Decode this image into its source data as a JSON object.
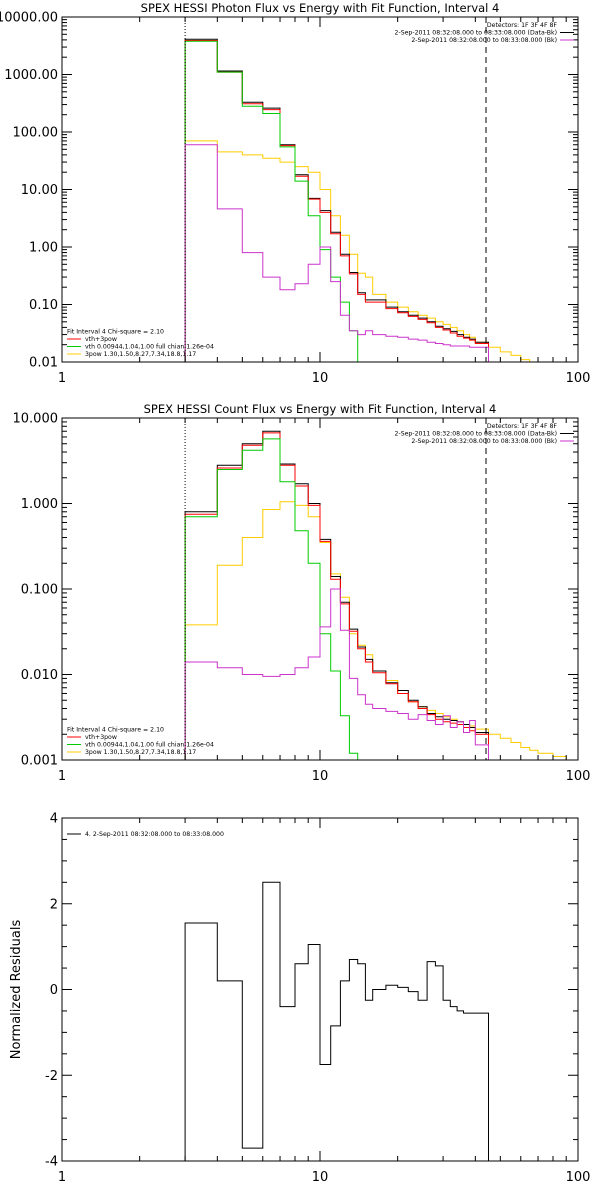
{
  "chart_data": [
    {
      "type": "line",
      "title": "SPEX HESSI Photon Flux vs Energy with Fit Function, Interval 4",
      "xlabel": "",
      "ylabel": "",
      "xscale": "log",
      "yscale": "log",
      "xlim": [
        1,
        100
      ],
      "ylim": [
        0.01,
        10000
      ],
      "xticks": [
        1,
        10,
        100
      ],
      "xticklabels": [
        "1",
        "10",
        "100"
      ],
      "yticks": [
        0.01,
        0.1,
        1,
        10,
        100,
        1000,
        10000
      ],
      "yticklabels": [
        "0.01",
        "0.10",
        "1.00",
        "10.00",
        "100.00",
        "1000.00",
        "10000.00"
      ],
      "vlines": [
        {
          "x": 3,
          "style": "dotted"
        },
        {
          "x": 44,
          "style": "dashed"
        }
      ],
      "legend_top": {
        "position": "top-right",
        "lines": [
          {
            "text": "Detectors: 1F 3F 4F 8F",
            "color": ""
          },
          {
            "text": "2-Sep-2011 08:32:08.000 to 08:33:08.000 (Data-Bk)",
            "color": "#000000"
          },
          {
            "text": "2-Sep-2011 08:32:08.000 to 08:33:08.000 (Bk)",
            "color": "#cc33cc"
          }
        ]
      },
      "legend_bottom": {
        "position": "bottom-left",
        "lines": [
          {
            "text": "Fit Interval 4   Chi-square = 2.10",
            "color": ""
          },
          {
            "text": "vth+3pow",
            "color": "#ff0000"
          },
          {
            "text": "vth 0.00944,1.04,1.00  full chian 1.26e-04",
            "color": "#00cc00"
          },
          {
            "text": "3pow 1.30,1.50,8.27,7.34,18.8,1.17",
            "color": "#ffcc00"
          }
        ]
      },
      "series": [
        {
          "color": "#ffcc00",
          "edges": [
            3,
            4,
            5,
            6,
            7,
            8,
            9,
            10,
            11,
            12,
            13,
            14,
            15,
            16,
            18,
            20,
            22,
            24,
            26,
            28,
            30,
            32,
            34,
            36,
            38,
            40,
            45,
            50,
            55,
            60,
            65,
            70
          ],
          "values": [
            70,
            45,
            40,
            35,
            30,
            25,
            20,
            10,
            3.5,
            1.6,
            0.75,
            0.35,
            0.3,
            0.15,
            0.11,
            0.09,
            0.075,
            0.065,
            0.058,
            0.05,
            0.045,
            0.04,
            0.035,
            0.03,
            0.027,
            0.022,
            0.018,
            0.015,
            0.013,
            0.011,
            0.01
          ]
        },
        {
          "color": "#000000",
          "edges": [
            3,
            4,
            5,
            6,
            7,
            8,
            9,
            10,
            11,
            12,
            13,
            14,
            15,
            16,
            18,
            20,
            22,
            24,
            26,
            28,
            30,
            32,
            34,
            36,
            38,
            40,
            45
          ],
          "values": [
            4100,
            1150,
            330,
            260,
            60,
            18,
            7,
            4.3,
            1.8,
            0.75,
            0.36,
            0.16,
            0.12,
            0.12,
            0.09,
            0.075,
            0.065,
            0.058,
            0.05,
            0.042,
            0.038,
            0.034,
            0.03,
            0.027,
            0.025,
            0.022
          ]
        },
        {
          "color": "#ff0000",
          "edges": [
            3,
            4,
            5,
            6,
            7,
            8,
            9,
            10,
            11,
            12,
            13,
            14,
            15,
            16,
            18,
            20,
            22,
            24,
            26,
            28,
            30,
            32,
            34,
            36,
            38,
            40,
            45
          ],
          "values": [
            3900,
            1100,
            310,
            245,
            58,
            17,
            6.8,
            4,
            1.7,
            0.7,
            0.34,
            0.15,
            0.11,
            0.11,
            0.085,
            0.072,
            0.062,
            0.055,
            0.048,
            0.04,
            0.036,
            0.032,
            0.028,
            0.026,
            0.024,
            0.021
          ]
        },
        {
          "color": "#00cc00",
          "edges": [
            3,
            4,
            5,
            6,
            7,
            8,
            9,
            10,
            11,
            12,
            13,
            14,
            15
          ],
          "values": [
            3800,
            1100,
            280,
            210,
            55,
            14,
            3.5,
            0.9,
            0.3,
            0.11,
            0.035,
            0.01
          ]
        },
        {
          "color": "#cc33cc",
          "edges": [
            3,
            4,
            5,
            6,
            7,
            8,
            9,
            10,
            11,
            12,
            13,
            14,
            15,
            16,
            18,
            20,
            22,
            24,
            26,
            28,
            30,
            32,
            34,
            36,
            38,
            40,
            45
          ],
          "values": [
            60,
            4.6,
            0.8,
            0.3,
            0.18,
            0.23,
            0.5,
            1.0,
            0.25,
            0.065,
            0.035,
            0.03,
            0.035,
            0.03,
            0.028,
            0.027,
            0.025,
            0.024,
            0.022,
            0.021,
            0.02,
            0.019,
            0.019,
            0.019,
            0.018,
            0.018
          ]
        }
      ]
    },
    {
      "type": "line",
      "title": "SPEX HESSI Count Flux vs Energy with Fit Function, Interval 4",
      "xlabel": "",
      "ylabel": "",
      "xscale": "log",
      "yscale": "log",
      "xlim": [
        1,
        100
      ],
      "ylim": [
        0.001,
        10
      ],
      "xticks": [
        1,
        10,
        100
      ],
      "xticklabels": [
        "1",
        "10",
        "100"
      ],
      "yticks": [
        0.001,
        0.01,
        0.1,
        1,
        10
      ],
      "yticklabels": [
        "0.001",
        "0.010",
        "0.100",
        "1.000",
        "10.000"
      ],
      "vlines": [
        {
          "x": 3,
          "style": "dotted"
        },
        {
          "x": 44,
          "style": "dashed"
        }
      ],
      "legend_top": {
        "position": "top-right",
        "lines": [
          {
            "text": "Detectors: 1F 3F 4F 8F",
            "color": ""
          },
          {
            "text": "2-Sep-2011 08:32:08.000 to 08:33:08.000 (Data-Bk)",
            "color": "#000000"
          },
          {
            "text": "2-Sep-2011 08:32:08.000 to 08:33:08.000 (Bk)",
            "color": "#cc33cc"
          }
        ]
      },
      "legend_bottom": {
        "position": "bottom-left",
        "lines": [
          {
            "text": "Fit Interval 4   Chi-square = 2.10",
            "color": ""
          },
          {
            "text": "vth+3pow",
            "color": "#ff0000"
          },
          {
            "text": "vth 0.00944,1.04,1.00  full chian 1.26e-04",
            "color": "#00cc00"
          },
          {
            "text": "3pow 1.30,1.50,8.27,7.34,18.8,1.17",
            "color": "#ffcc00"
          }
        ]
      },
      "series": [
        {
          "color": "#ffcc00",
          "edges": [
            3,
            4,
            5,
            6,
            7,
            8,
            9,
            10,
            11,
            12,
            13,
            14,
            15,
            16,
            18,
            20,
            22,
            24,
            26,
            28,
            30,
            32,
            34,
            36,
            38,
            40,
            45,
            50,
            55,
            60,
            65,
            70,
            80,
            90,
            100
          ],
          "values": [
            0.038,
            0.19,
            0.4,
            0.85,
            1.05,
            0.95,
            0.7,
            0.35,
            0.15,
            0.08,
            0.03,
            0.022,
            0.017,
            0.011,
            0.0085,
            0.006,
            0.0048,
            0.0042,
            0.0038,
            0.0035,
            0.0032,
            0.003,
            0.0028,
            0.0026,
            0.0025,
            0.0023,
            0.002,
            0.0018,
            0.0016,
            0.0014,
            0.0013,
            0.0012,
            0.0011,
            0.001
          ]
        },
        {
          "color": "#000000",
          "edges": [
            3,
            4,
            5,
            6,
            7,
            8,
            9,
            10,
            11,
            12,
            13,
            14,
            15,
            16,
            18,
            20,
            22,
            24,
            26,
            28,
            30,
            32,
            34,
            36,
            38,
            40,
            45
          ],
          "values": [
            0.8,
            2.8,
            5,
            7,
            2.9,
            1.7,
            1.0,
            0.38,
            0.14,
            0.07,
            0.034,
            0.021,
            0.015,
            0.011,
            0.008,
            0.0065,
            0.005,
            0.0042,
            0.0035,
            0.0032,
            0.003,
            0.0029,
            0.0028,
            0.0026,
            0.0024,
            0.0021
          ]
        },
        {
          "color": "#ff0000",
          "edges": [
            3,
            4,
            5,
            6,
            7,
            8,
            9,
            10,
            11,
            12,
            13,
            14,
            15,
            16,
            18,
            20,
            22,
            24,
            26,
            28,
            30,
            32,
            34,
            36,
            38,
            40,
            45
          ],
          "values": [
            0.75,
            2.6,
            4.8,
            6.7,
            2.8,
            1.6,
            0.95,
            0.36,
            0.13,
            0.067,
            0.032,
            0.02,
            0.014,
            0.0105,
            0.0078,
            0.006,
            0.0048,
            0.004,
            0.0034,
            0.003,
            0.0028,
            0.0027,
            0.0026,
            0.0024,
            0.0022,
            0.002
          ]
        },
        {
          "color": "#00cc00",
          "edges": [
            3,
            4,
            5,
            6,
            7,
            8,
            9,
            10,
            11,
            12,
            13,
            14,
            15
          ],
          "values": [
            0.7,
            2.5,
            4.2,
            5.7,
            1.8,
            0.48,
            0.2,
            0.03,
            0.011,
            0.0033,
            0.0012,
            0.001
          ]
        },
        {
          "color": "#cc33cc",
          "edges": [
            3,
            4,
            5,
            6,
            7,
            8,
            9,
            10,
            11,
            12,
            13,
            14,
            15,
            16,
            18,
            20,
            22,
            24,
            26,
            28,
            30,
            32,
            34,
            36,
            38,
            40,
            45
          ],
          "values": [
            0.014,
            0.012,
            0.01,
            0.0095,
            0.01,
            0.012,
            0.016,
            0.036,
            0.1,
            0.033,
            0.009,
            0.0058,
            0.0045,
            0.004,
            0.0037,
            0.0035,
            0.003,
            0.0034,
            0.0029,
            0.0026,
            0.0033,
            0.0024,
            0.0028,
            0.0021,
            0.0029,
            0.0015
          ]
        }
      ]
    },
    {
      "type": "line",
      "title": "",
      "xlabel": "",
      "ylabel": "Normalized Residuals",
      "xscale": "log",
      "yscale": "linear",
      "xlim": [
        1,
        100
      ],
      "ylim": [
        -4,
        4
      ],
      "xticks": [
        1,
        10,
        100
      ],
      "xticklabels": [
        "1",
        "10",
        "100"
      ],
      "yticks": [
        -4,
        -2,
        0,
        2,
        4
      ],
      "yticklabels": [
        "-4",
        "-2",
        "0",
        "2",
        "4"
      ],
      "legend_top": {
        "position": "top-left",
        "lines": [
          {
            "text": "4. 2-Sep-2011 08:32:08.000 to 08:33:08.000",
            "color": "#000000"
          }
        ]
      },
      "series": [
        {
          "color": "#000000",
          "edges": [
            3,
            4,
            5,
            6,
            7,
            8,
            9,
            10,
            11,
            12,
            13,
            14,
            15,
            16,
            18,
            20,
            22,
            24,
            26,
            28,
            30,
            32,
            34,
            36,
            38,
            40,
            45
          ],
          "values": [
            1.55,
            0.2,
            -3.7,
            2.5,
            -0.4,
            0.6,
            1.05,
            -1.75,
            -0.85,
            0.2,
            0.7,
            0.6,
            -0.25,
            0,
            0.1,
            0.05,
            -0.05,
            -0.25,
            0.65,
            0.55,
            -0.25,
            -0.4,
            -0.5,
            -0.55,
            -0.55,
            -0.55
          ]
        }
      ]
    }
  ]
}
